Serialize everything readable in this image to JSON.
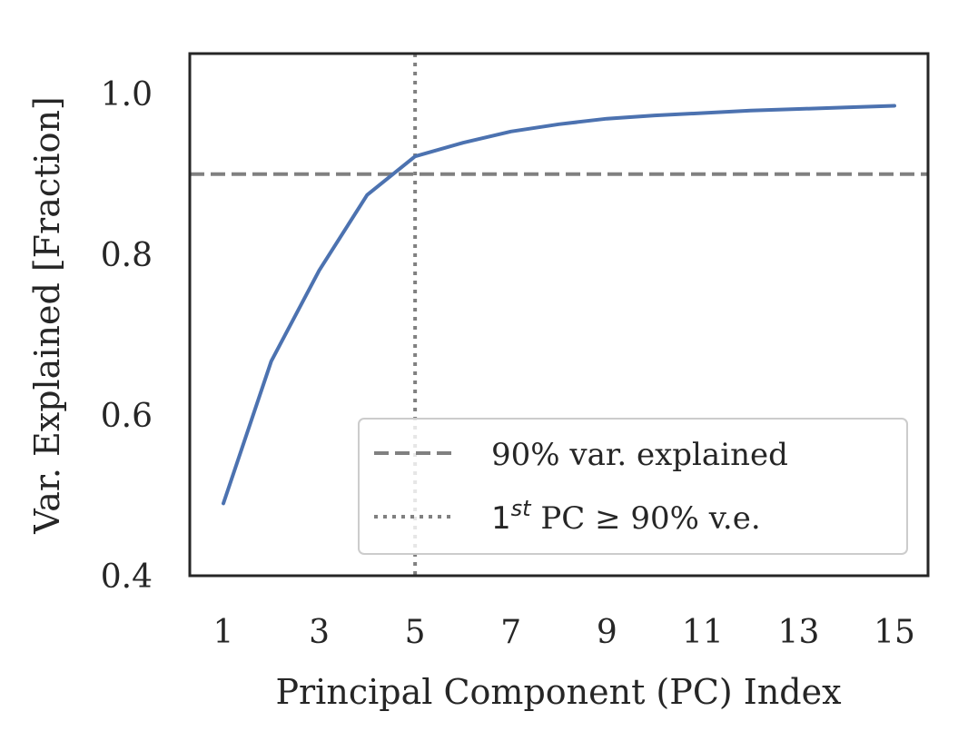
{
  "chart_data": {
    "type": "line",
    "xlabel": "Principal Component (PC) Index",
    "ylabel": "Var. Explained [Fraction]",
    "xlim": [
      0.3,
      15.7
    ],
    "ylim": [
      0.4,
      1.05
    ],
    "x_ticks": [
      1,
      3,
      5,
      7,
      9,
      11,
      13,
      15
    ],
    "x_tick_labels": [
      "1",
      "3",
      "5",
      "7",
      "9",
      "11",
      "13",
      "15"
    ],
    "y_ticks": [
      0.4,
      0.6,
      0.8,
      1.0
    ],
    "y_tick_labels": [
      "0.4",
      "0.6",
      "0.8",
      "1.0"
    ],
    "grid": false,
    "series": [
      {
        "x": [
          1,
          2,
          3,
          4,
          5,
          6,
          7,
          8,
          9,
          10,
          11,
          12,
          13,
          14,
          15
        ],
        "values": [
          0.49,
          0.667,
          0.78,
          0.874,
          0.922,
          0.939,
          0.953,
          0.962,
          0.969,
          0.973,
          0.976,
          0.979,
          0.981,
          0.983,
          0.985
        ],
        "color": "#4c72b0"
      }
    ],
    "reference_lines": [
      {
        "orientation": "horizontal",
        "y": 0.9,
        "style": "dashed",
        "color": "#808080",
        "legend": "90% var. explained"
      },
      {
        "orientation": "vertical",
        "x": 5,
        "style": "dotted",
        "color": "#808080",
        "legend_base": "1",
        "legend_sup": "st",
        "legend_rest": " PC ≥ 90% v.e."
      }
    ],
    "legend_placement": "lower-right"
  }
}
